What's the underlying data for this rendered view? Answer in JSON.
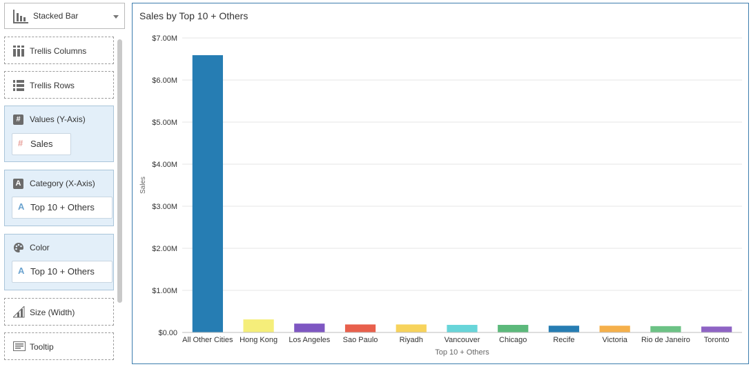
{
  "left_panel": {
    "chart_type": {
      "label": "Stacked Bar",
      "icon": "stacked-bar-chart-icon"
    },
    "trellis_columns": {
      "label": "Trellis Columns",
      "icon": "columns-icon"
    },
    "trellis_rows": {
      "label": "Trellis Rows",
      "icon": "rows-icon"
    },
    "values": {
      "label": "Values (Y-Axis)",
      "icon": "hash-icon",
      "chip": "Sales",
      "chip_icon": "hash-icon",
      "chip_icon_color": "#e8a09a"
    },
    "category": {
      "label": "Category (X-Axis)",
      "icon": "text-attribute-icon",
      "chip": "Top 10 + Others",
      "chip_icon": "text-attribute-icon",
      "chip_icon_color": "#6ba3cf"
    },
    "color": {
      "label": "Color",
      "icon": "palette-icon",
      "chip": "Top 10 + Others",
      "chip_icon": "text-attribute-icon"
    },
    "size": {
      "label": "Size (Width)",
      "icon": "size-icon"
    },
    "tooltip": {
      "label": "Tooltip",
      "icon": "tooltip-icon"
    }
  },
  "chart_data": {
    "type": "bar",
    "title": "Sales by Top 10 + Others",
    "xlabel": "Top 10 + Others",
    "ylabel": "Sales",
    "ylim": [
      0,
      7000000
    ],
    "yticks": [
      "$0.00",
      "$1.00M",
      "$2.00M",
      "$3.00M",
      "$4.00M",
      "$5.00M",
      "$6.00M",
      "$7.00M"
    ],
    "categories": [
      "All Other Cities",
      "Hong Kong",
      "Los Angeles",
      "Sao Paulo",
      "Riyadh",
      "Vancouver",
      "Chicago",
      "Recife",
      "Victoria",
      "Rio de Janeiro",
      "Toronto"
    ],
    "values": [
      6590000,
      310000,
      210000,
      190000,
      190000,
      180000,
      180000,
      160000,
      160000,
      150000,
      140000
    ],
    "colors": [
      "#267db3",
      "#f5ee7a",
      "#7e57c2",
      "#e8604c",
      "#f7d35c",
      "#68d5d9",
      "#5cb97b",
      "#267db3",
      "#f5b04b",
      "#6cc285",
      "#8e63c4"
    ],
    "grid": true,
    "legend": "none"
  }
}
